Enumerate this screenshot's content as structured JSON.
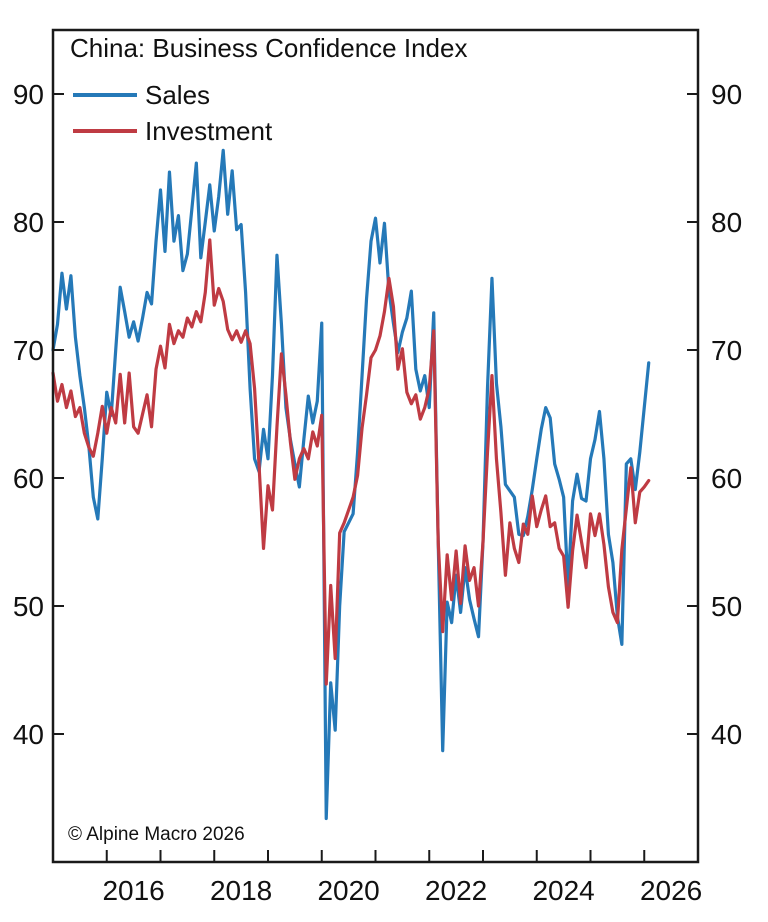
{
  "title": "China: Business Confidence Index",
  "watermark": "© Alpine Macro 2026",
  "legend": {
    "items": [
      {
        "label": "Sales",
        "color": "#2579b8"
      },
      {
        "label": "Investment",
        "color": "#bf3b43"
      }
    ]
  },
  "axes": {
    "y_ticks": [
      40,
      50,
      60,
      70,
      80,
      90
    ],
    "x_tick_years": [
      2016,
      2017,
      2018,
      2019,
      2020,
      2021,
      2022,
      2023,
      2024,
      2025,
      2026
    ],
    "x_label_years": [
      2016,
      2018,
      2020,
      2022,
      2024,
      2026
    ]
  },
  "chart_data": {
    "type": "line",
    "title": "China: Business Confidence Index",
    "xlabel": "",
    "ylabel": "",
    "frequency": "monthly",
    "x_start": "2015-01",
    "x_end": "2026-02",
    "x_range_years": [
      2015,
      2027
    ],
    "ylim": [
      30,
      95
    ],
    "y_ticks": [
      40,
      50,
      60,
      70,
      80,
      90
    ],
    "grid": false,
    "legend_position": "top-left-inside",
    "annotation": "© Alpine Macro 2026",
    "series": [
      {
        "name": "Sales",
        "color": "#2579b8",
        "values": [
          70.0,
          72.0,
          76.0,
          73.2,
          75.8,
          71.0,
          68.0,
          65.5,
          62.5,
          58.5,
          56.8,
          61.5,
          66.7,
          64.9,
          70.0,
          74.9,
          73.0,
          71.0,
          72.2,
          70.7,
          72.5,
          74.5,
          73.6,
          78.5,
          82.5,
          77.7,
          83.9,
          78.5,
          80.5,
          76.2,
          77.5,
          81.0,
          84.6,
          77.2,
          80.0,
          82.9,
          79.3,
          82.0,
          85.6,
          80.6,
          84.0,
          79.4,
          79.8,
          74.5,
          67.0,
          61.5,
          60.5,
          63.8,
          61.5,
          68.0,
          77.4,
          72.0,
          65.5,
          63.0,
          61.1,
          59.3,
          63.0,
          66.4,
          64.3,
          66.0,
          72.1,
          33.4,
          44.0,
          40.3,
          50.0,
          55.8,
          56.5,
          57.2,
          62.0,
          68.0,
          74.0,
          78.5,
          80.3,
          76.8,
          79.9,
          74.6,
          72.1,
          69.8,
          71.4,
          72.5,
          74.6,
          68.5,
          66.8,
          68.0,
          65.5,
          72.9,
          55.0,
          38.7,
          50.3,
          48.7,
          52.4,
          49.5,
          53.0,
          50.5,
          49.0,
          47.6,
          55.0,
          67.0,
          75.6,
          67.4,
          64.0,
          59.5,
          59.0,
          58.5,
          55.6,
          55.5,
          57.0,
          59.1,
          61.5,
          63.8,
          65.5,
          64.7,
          61.1,
          59.9,
          58.5,
          51.5,
          58.2,
          60.3,
          58.4,
          58.2,
          61.5,
          63.0,
          65.2,
          61.5,
          55.6,
          53.4,
          49.2,
          47.0,
          61.1,
          61.5,
          59.1,
          62.0,
          65.5,
          69.0
        ]
      },
      {
        "name": "Investment",
        "color": "#bf3b43",
        "values": [
          68.2,
          66.0,
          67.3,
          65.5,
          66.8,
          64.8,
          65.5,
          63.5,
          62.4,
          61.7,
          63.5,
          65.6,
          63.5,
          65.5,
          64.3,
          68.1,
          64.3,
          68.2,
          64.0,
          63.5,
          65.0,
          66.5,
          64.0,
          68.5,
          70.3,
          68.6,
          72.0,
          70.5,
          71.5,
          71.0,
          72.5,
          71.8,
          73.0,
          72.2,
          74.5,
          78.6,
          73.5,
          74.8,
          73.8,
          71.6,
          70.8,
          71.5,
          70.6,
          71.5,
          70.5,
          67.0,
          61.0,
          54.5,
          59.4,
          57.5,
          64.0,
          69.7,
          66.5,
          62.8,
          59.9,
          61.5,
          62.3,
          61.5,
          63.6,
          62.5,
          64.9,
          43.9,
          51.6,
          45.9,
          55.7,
          56.5,
          57.5,
          58.5,
          60.2,
          63.9,
          66.5,
          69.4,
          70.0,
          71.1,
          73.0,
          75.6,
          73.4,
          68.5,
          70.1,
          66.7,
          65.8,
          66.5,
          64.6,
          65.5,
          67.0,
          71.5,
          55.0,
          48.0,
          54.0,
          50.5,
          54.3,
          50.2,
          54.7,
          52.0,
          53.0,
          50.0,
          55.0,
          62.0,
          68.0,
          61.5,
          57.3,
          52.4,
          56.5,
          54.5,
          53.4,
          56.4,
          55.6,
          58.6,
          56.2,
          57.5,
          58.6,
          56.2,
          56.5,
          54.5,
          53.9,
          49.9,
          54.3,
          57.1,
          55.0,
          53.0,
          57.2,
          55.5,
          57.2,
          54.8,
          51.5,
          49.5,
          48.7,
          54.4,
          57.6,
          60.8,
          56.5,
          58.9,
          59.3,
          59.8
        ]
      }
    ]
  }
}
